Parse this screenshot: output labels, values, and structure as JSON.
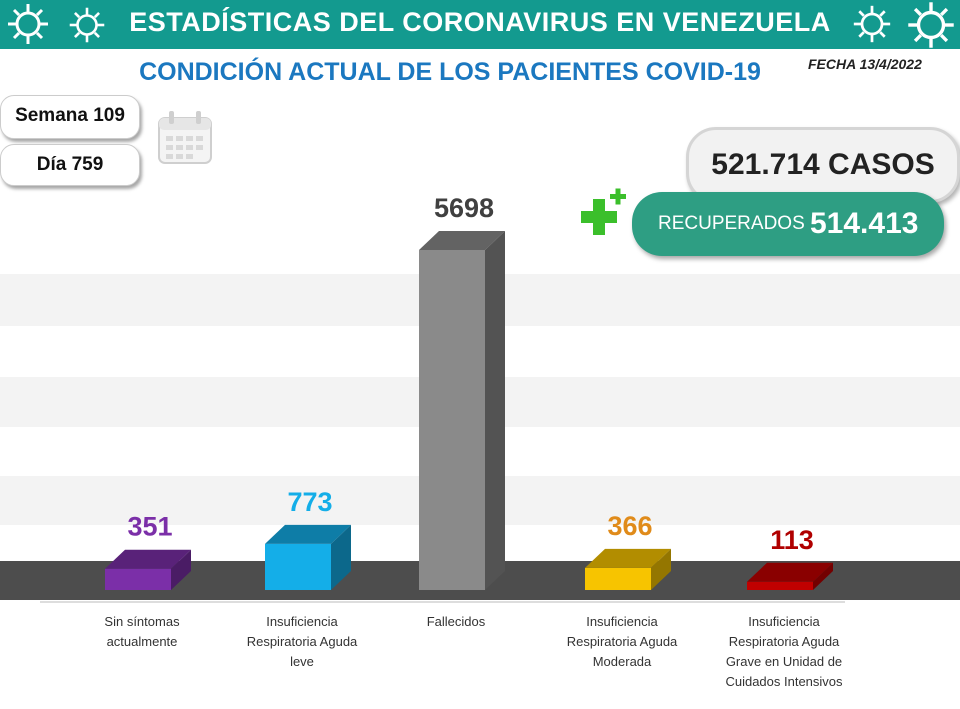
{
  "header": {
    "title": "ESTADÍSTICAS DEL CORONAVIRUS EN VENEZUELA",
    "subtitle": "CONDICIÓN ACTUAL DE LOS PACIENTES COVID-19",
    "fecha": "FECHA 13/4/2022"
  },
  "period": {
    "semana": "Semana 109",
    "dia": "Día 759"
  },
  "totals": {
    "casos": "521.714 CASOS",
    "recuperados_label": "RECUPERADOS",
    "recuperados_value": "514.413"
  },
  "colors": {
    "banner": "#139a8f",
    "subtitle": "#1b78c0",
    "floor": "#4d4d4d"
  },
  "icons": [
    "virus-icon",
    "calendar-icon",
    "plus-icon"
  ],
  "chart_data": {
    "type": "bar",
    "title": "CONDICIÓN ACTUAL DE LOS PACIENTES COVID-19",
    "ylim": [
      0,
      5698
    ],
    "categories": [
      [
        "Sin síntomas",
        "actualmente"
      ],
      [
        "Insuficiencia",
        "Respiratoria Aguda",
        "leve"
      ],
      [
        "Fallecidos"
      ],
      [
        "Insuficiencia",
        "Respiratoria Aguda",
        "Moderada"
      ],
      [
        "Insuficiencia",
        "Respiratoria Aguda",
        "Grave en Unidad de",
        "Cuidados Intensivos"
      ]
    ],
    "values": [
      351,
      773,
      5698,
      366,
      113
    ],
    "value_labels": [
      "351",
      "773",
      "5698",
      "366",
      "113"
    ],
    "bar_colors": [
      "#7b2fa8",
      "#14aee8",
      "#8a8a8a",
      "#f7c400",
      "#c00000"
    ],
    "label_colors": [
      "#7b2fa8",
      "#14aee8",
      "#404040",
      "#e08b1a",
      "#b00000"
    ]
  }
}
